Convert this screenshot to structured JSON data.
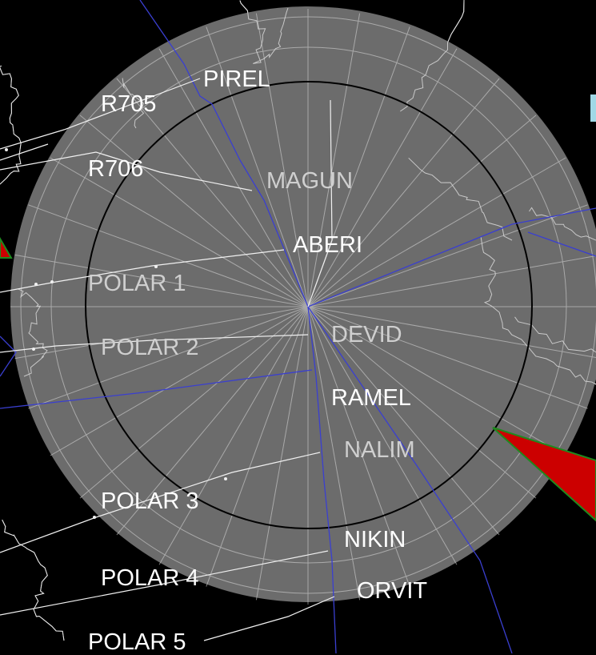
{
  "colors": {
    "background": "#000000",
    "range_ring_fill": "#6c6c6c",
    "inner_ring_stroke": "#000000",
    "bearing_lines": "#dcdcdc",
    "coastline": "#e8e8e8",
    "airspace_boundary": "#3a3fd0",
    "route_line": "#f0f0f0",
    "traffic_wedge": "#cc0000",
    "traffic_wedge_edge": "#1e8a1e"
  },
  "waypoints": [
    {
      "id": "pirel",
      "label": "PIREL",
      "style": "bright"
    },
    {
      "id": "r705",
      "label": "R705",
      "style": "bright"
    },
    {
      "id": "r706",
      "label": "R706",
      "style": "bright"
    },
    {
      "id": "magun",
      "label": "MAGUN",
      "style": "dim"
    },
    {
      "id": "aberi",
      "label": "ABERI",
      "style": "bright"
    },
    {
      "id": "polar1",
      "label": "POLAR 1",
      "style": "dim"
    },
    {
      "id": "polar2",
      "label": "POLAR 2",
      "style": "dim"
    },
    {
      "id": "devid",
      "label": "DEVID",
      "style": "dim"
    },
    {
      "id": "ramel",
      "label": "RAMEL",
      "style": "bright"
    },
    {
      "id": "nalim",
      "label": "NALIM",
      "style": "dim"
    },
    {
      "id": "polar3",
      "label": "POLAR 3",
      "style": "bright"
    },
    {
      "id": "nikin",
      "label": "NIKIN",
      "style": "bright"
    },
    {
      "id": "polar4",
      "label": "POLAR 4",
      "style": "bright"
    },
    {
      "id": "orvit",
      "label": "ORVIT",
      "style": "bright"
    },
    {
      "id": "polar5",
      "label": "POLAR 5",
      "style": "bright"
    }
  ]
}
